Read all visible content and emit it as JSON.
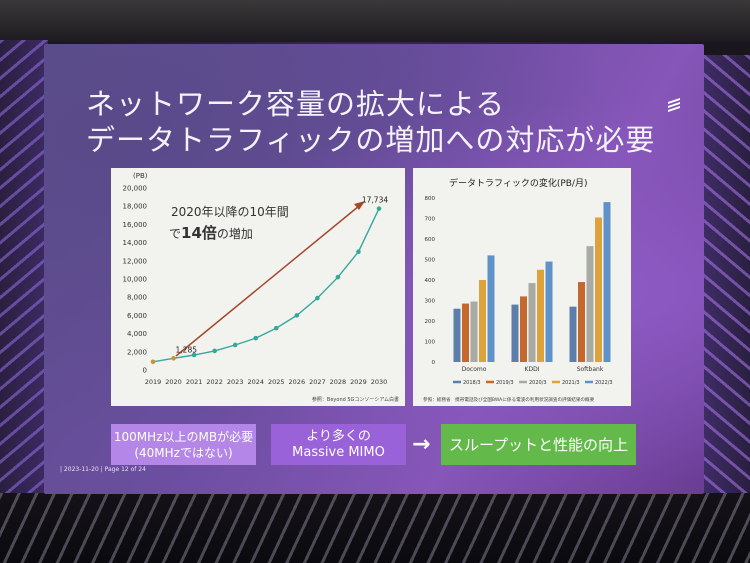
{
  "slide": {
    "title_line1": "ネットワーク容量の拡大による",
    "title_line2": "データトラフィックの増加への対応が必要",
    "footer": "| 2023-11-20 | Page 12 of 24"
  },
  "left_chart": {
    "annotation_line1": "2020年以降の10年間",
    "annotation_prefix": "で",
    "annotation_emph": "14倍",
    "annotation_suffix": "の増加",
    "source": "参照：Beyond 5Gコンソーシアム白書",
    "colors": {
      "line": "#33a99b",
      "arrow": "#a4482a",
      "start_point": "#c89434"
    }
  },
  "right_chart": {
    "source": "参照：総務省　携帯電話及び全国BWAに係る電波の利用状況調査の評価結果の概要"
  },
  "boxes": {
    "mb_line1": "100MHz以上のMBが必要",
    "mb_line2": "(40MHzではない)",
    "mimo_line1": "より多くの",
    "mimo_line2": "Massive MIMO",
    "arrow": "→",
    "throughput": "スループットと性能の向上"
  },
  "chart_data": [
    {
      "type": "line",
      "ylabel": "(PB)",
      "x": [
        "2019",
        "2020",
        "2021",
        "2022",
        "2023",
        "2024",
        "2025",
        "2026",
        "2027",
        "2028",
        "2029",
        "2030"
      ],
      "values": [
        900,
        1285,
        1650,
        2100,
        2750,
        3500,
        4600,
        6000,
        7900,
        10200,
        13000,
        17734
      ],
      "point_labels": {
        "1": "1,285",
        "11": "17,734"
      },
      "yticks": [
        "0",
        "2,000",
        "4,000",
        "6,000",
        "8,000",
        "10,000",
        "12,000",
        "14,000",
        "16,000",
        "18,000",
        "20,000"
      ],
      "ylim": [
        0,
        20000
      ],
      "grid": false
    },
    {
      "type": "bar",
      "title": "データトラフィックの変化(PB/月)",
      "categories": [
        "Docomo",
        "KDDI",
        "Softbank"
      ],
      "series": [
        {
          "name": "2018/3",
          "color": "#5d7ea8",
          "values": [
            260,
            280,
            270
          ]
        },
        {
          "name": "2019/3",
          "color": "#c4682e",
          "values": [
            285,
            320,
            390
          ]
        },
        {
          "name": "2020/3",
          "color": "#a8aaa4",
          "values": [
            295,
            385,
            565
          ]
        },
        {
          "name": "2021/3",
          "color": "#dda23a",
          "values": [
            400,
            450,
            705
          ]
        },
        {
          "name": "2022/3",
          "color": "#5e92c9",
          "values": [
            520,
            490,
            780
          ]
        }
      ],
      "yticks": [
        "0",
        "100",
        "200",
        "300",
        "400",
        "500",
        "600",
        "700",
        "800"
      ],
      "ylim": [
        0,
        800
      ],
      "legend": "bottom"
    }
  ]
}
